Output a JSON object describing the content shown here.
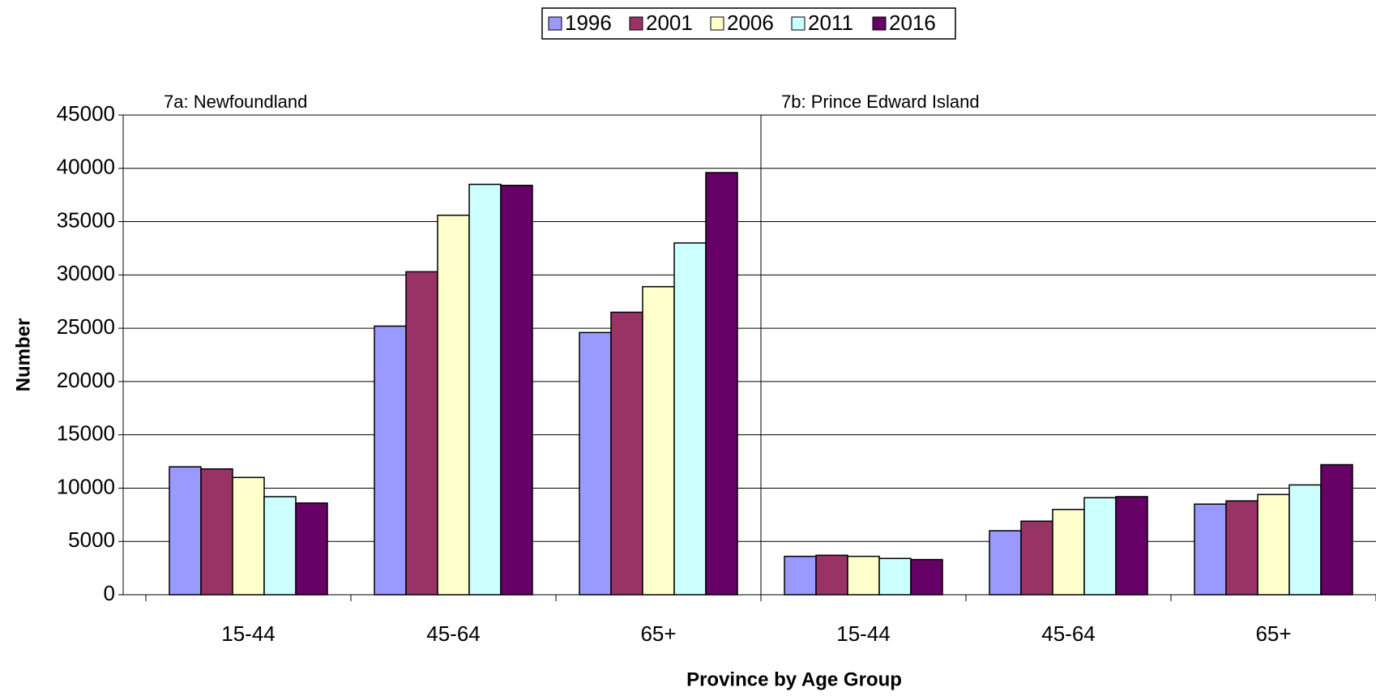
{
  "chart_data": {
    "type": "bar",
    "annotations": [
      "7a: Newfoundland",
      "7b: Prince Edward Island"
    ],
    "x_label": "Province by Age Group",
    "y_label": "Number",
    "categories": [
      "15-44",
      "45-64",
      "65+",
      "15-44",
      "45-64",
      "65+"
    ],
    "series": [
      {
        "name": "1996",
        "color": "#9999ff",
        "values": [
          12000,
          25200,
          24600,
          3600,
          6000,
          8500
        ]
      },
      {
        "name": "2001",
        "color": "#993366",
        "values": [
          11800,
          30300,
          26500,
          3700,
          6900,
          8800
        ]
      },
      {
        "name": "2006",
        "color": "#ffffcc",
        "values": [
          11000,
          35600,
          28900,
          3600,
          8000,
          9400
        ]
      },
      {
        "name": "2011",
        "color": "#ccffff",
        "values": [
          9200,
          38500,
          33000,
          3400,
          9100,
          10300
        ]
      },
      {
        "name": "2016",
        "color": "#660066",
        "values": [
          8600,
          38400,
          39600,
          3300,
          9200,
          12200
        ]
      }
    ],
    "ylim": [
      0,
      45000
    ],
    "yticks": [
      0,
      5000,
      10000,
      15000,
      20000,
      25000,
      30000,
      35000,
      40000,
      45000
    ],
    "grid": true,
    "legend": "top"
  }
}
